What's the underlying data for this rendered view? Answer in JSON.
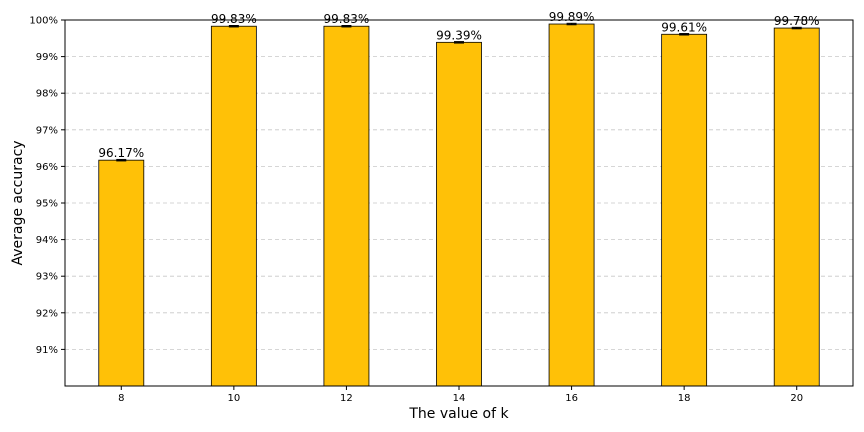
{
  "chart_data": {
    "type": "bar",
    "xlabel": "The value of k",
    "ylabel": "Average accuracy",
    "categories": [
      "8",
      "10",
      "12",
      "14",
      "16",
      "18",
      "20"
    ],
    "values": [
      96.17,
      99.83,
      99.83,
      99.39,
      99.89,
      99.61,
      99.78
    ],
    "value_labels": [
      "96.17%",
      "99.83%",
      "99.83%",
      "99.39%",
      "99.89%",
      "99.61%",
      "99.78%"
    ],
    "error": [
      0.02,
      0.02,
      0.02,
      0.02,
      0.02,
      0.02,
      0.02
    ],
    "ylim": [
      90,
      100
    ],
    "yticks": [
      91,
      92,
      93,
      94,
      95,
      96,
      97,
      98,
      99,
      100
    ],
    "ytick_labels": [
      "91%",
      "92%",
      "93%",
      "94%",
      "95%",
      "96%",
      "97%",
      "98%",
      "99%",
      "100%"
    ],
    "grid": "horizontal dashed",
    "bar_color": "#FFC107",
    "edge_color": "#000000",
    "grid_color": "#c8c8c8"
  }
}
